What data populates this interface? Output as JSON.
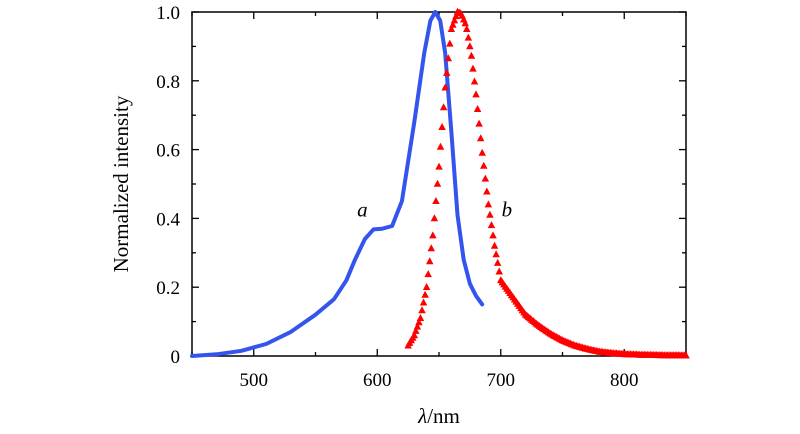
{
  "chart_data": {
    "type": "line",
    "title": "",
    "xlabel_italic": "λ",
    "xlabel_rest": "/nm",
    "ylabel": "Normalized intensity",
    "xlim": [
      450,
      850
    ],
    "ylim": [
      0,
      1.0
    ],
    "x_ticks": [
      500,
      600,
      700,
      800
    ],
    "x_tick_labels": [
      "500",
      "600",
      "700",
      "800"
    ],
    "y_ticks": [
      0,
      0.2,
      0.4,
      0.6,
      0.8,
      1.0
    ],
    "y_tick_labels": [
      "0",
      "0.2",
      "0.4",
      "0.6",
      "0.8",
      "1.0"
    ],
    "grid": false,
    "series": [
      {
        "name": "a",
        "style": "solid-line",
        "color": "#3355ee",
        "x": [
          450,
          470,
          490,
          510,
          530,
          550,
          565,
          575,
          582,
          590,
          597,
          604,
          612,
          620,
          630,
          638,
          643,
          647,
          651,
          655,
          660,
          665,
          670,
          675,
          680,
          685
        ],
        "y": [
          0.0,
          0.005,
          0.015,
          0.035,
          0.07,
          0.12,
          0.165,
          0.22,
          0.28,
          0.34,
          0.368,
          0.37,
          0.378,
          0.45,
          0.68,
          0.88,
          0.975,
          1.0,
          0.975,
          0.88,
          0.65,
          0.41,
          0.28,
          0.21,
          0.175,
          0.15
        ]
      },
      {
        "name": "b",
        "style": "triangle-markers",
        "color": "#ff0000",
        "x": [
          625,
          630,
          635,
          640,
          645,
          650,
          655,
          660,
          665,
          668,
          672,
          676,
          680,
          685,
          690,
          695,
          700,
          710,
          720,
          730,
          740,
          750,
          760,
          770,
          780,
          790,
          800,
          815,
          830,
          850
        ],
        "y": [
          0.03,
          0.06,
          0.11,
          0.2,
          0.35,
          0.55,
          0.78,
          0.95,
          1.0,
          0.995,
          0.96,
          0.88,
          0.76,
          0.59,
          0.44,
          0.32,
          0.22,
          0.17,
          0.12,
          0.09,
          0.065,
          0.045,
          0.03,
          0.02,
          0.012,
          0.008,
          0.005,
          0.003,
          0.002,
          0.001
        ]
      }
    ],
    "annotations": [
      {
        "text": "a",
        "x": 588,
        "y": 0.4
      },
      {
        "text": "b",
        "x": 705,
        "y": 0.4
      }
    ]
  }
}
